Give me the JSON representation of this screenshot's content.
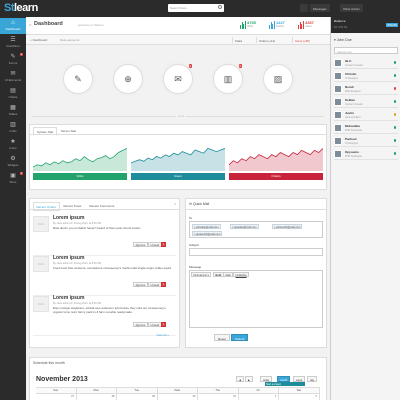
{
  "brand": {
    "logo_prefix": "St",
    "logo_suffix": "learn"
  },
  "topbar": {
    "search_placeholder": "Search here...",
    "messages_label": "Messages",
    "user_label": "Other Admin"
  },
  "nav": [
    {
      "label": "Dashboard",
      "glyph": "⌂",
      "badge": ""
    },
    {
      "label": "UserMenu",
      "glyph": "☰",
      "badge": ""
    },
    {
      "label": "Forms",
      "glyph": "✎",
      "badge": "2"
    },
    {
      "label": "UI Elements",
      "glyph": "✉",
      "badge": ""
    },
    {
      "label": "Charts",
      "glyph": "▤",
      "badge": ""
    },
    {
      "label": "Tables",
      "glyph": "▦",
      "badge": ""
    },
    {
      "label": "Grids",
      "glyph": "▥",
      "badge": ""
    },
    {
      "label": "Icons",
      "glyph": "★",
      "badge": ""
    },
    {
      "label": "Widgets",
      "glyph": "⚙",
      "badge": ""
    },
    {
      "label": "More",
      "glyph": "▣",
      "badge": "3"
    }
  ],
  "header": {
    "title": "Dashboard",
    "subtitle": "welcome to Stlearn",
    "stats": [
      {
        "value": "4765",
        "label": "Visits",
        "color": "#22a36b"
      },
      {
        "value": "1427",
        "label": "Orders",
        "color": "#3aa6d8"
      },
      {
        "value": "4367",
        "label": "Users",
        "color": "#e04040"
      }
    ]
  },
  "breadcrumb": {
    "home": "Dashboard",
    "current": "Data elements",
    "tasks": "Tasks",
    "orders": "Orders (+12)",
    "users": "Users (+58)"
  },
  "shortcuts": [
    {
      "name": "edit",
      "glyph": "✎",
      "badge": ""
    },
    {
      "name": "upload",
      "glyph": "⊕",
      "badge": ""
    },
    {
      "name": "mail",
      "glyph": "✉",
      "badge": "4"
    },
    {
      "name": "barcode",
      "glyph": "▥",
      "badge": "2"
    },
    {
      "name": "image",
      "glyph": "▨",
      "badge": ""
    }
  ],
  "shortcut_divider": "more",
  "stats_panel": {
    "tabs": [
      "System Stat",
      "Server Stat"
    ],
    "charts": [
      {
        "label": "Visits",
        "color": "#22a36b",
        "points": [
          4,
          6,
          5,
          8,
          6,
          9,
          7,
          10,
          8,
          9,
          12,
          10,
          14,
          11,
          9,
          12,
          13,
          15,
          12,
          14,
          18,
          20,
          22
        ]
      },
      {
        "label": "Users",
        "color": "#1e8c9a",
        "points": [
          5,
          6,
          7,
          6,
          8,
          7,
          9,
          8,
          10,
          9,
          11,
          10,
          12,
          11,
          10,
          13,
          12,
          11,
          14,
          13,
          12,
          13,
          14
        ]
      },
      {
        "label": "Orders",
        "color": "#c9233c",
        "points": [
          3,
          5,
          4,
          6,
          5,
          7,
          6,
          8,
          7,
          6,
          8,
          7,
          9,
          8,
          7,
          9,
          8,
          10,
          9,
          8,
          10,
          9,
          11
        ]
      }
    ]
  },
  "recent": {
    "tabs": [
      "Recent Orders",
      "Recent Posts",
      "Recent Comments"
    ],
    "posts": [
      {
        "title": "Lorem ipsum",
        "meta": "By Jane admin on 19 aug 2013, at 8:46 PM",
        "body": "Raw denim you probably haven't heard of them jean shorts Austin.",
        "thumb": "64x64"
      },
      {
        "title": "Lorem ipsum",
        "meta": "By Jane admin on 19 aug 2013, at 8:46 PM",
        "body": "Food truck fixie locavore, accusamus mcsweeney's marfa nulla single-origin coffee squid.",
        "thumb": "64x64"
      },
      {
        "title": "Lorem ipsum",
        "meta": "By Jane admin on 19 aug 2013, at 8:46 PM",
        "body": "Etsy mixtape wayfarers, ethical wes anderson tofu before they sold out mcsweeney's organic lomo retro fanny pack lo-fi farm-to-table readymade.",
        "thumb": "64x64"
      }
    ],
    "approve": "Approve",
    "unread": "Unread",
    "delete": "×",
    "view_all": "View all »"
  },
  "quick_mail": {
    "title": "Quick Mail",
    "to_label": "To",
    "recipients": [
      "johndoe@mail.com",
      "janedoe@mail.com",
      "johnsmith@mail.com",
      "janesmith@mail.com"
    ],
    "subject_label": "Subject",
    "message_label": "Message",
    "toolbar": [
      "Normal text ▾",
      "Bold",
      "Italic",
      "Underline"
    ],
    "reset": "Reset",
    "submit": "Submit"
  },
  "calendar": {
    "heading": "Schedule this month",
    "month": "November 2013",
    "prev": "◀",
    "next": "▶",
    "today": "today",
    "views": [
      "month",
      "week",
      "day"
    ],
    "days": [
      "Sun",
      "Mon",
      "Tue",
      "Wed",
      "Thu",
      "Fri",
      "Sat"
    ],
    "first_row": [
      "27",
      "28",
      "29",
      "30",
      "31",
      "1",
      "2"
    ],
    "event": "Start a project"
  },
  "balance": {
    "label": "Balance",
    "amount": "$2,345.00",
    "update": "UPDATE"
  },
  "users": {
    "heading": "John Doe",
    "search_placeholder": "Search user",
    "list": [
      {
        "name": "Ila C.",
        "role": "Content Creator",
        "status": "#22a36b"
      },
      {
        "name": "Christin",
        "role": "UI Designer",
        "status": "#22a36b"
      },
      {
        "name": "Norah",
        "role": "Web Designer",
        "status": "#e04040"
      },
      {
        "name": "Kellian",
        "role": "Content Creator",
        "status": "#22a36b"
      },
      {
        "name": "Justin",
        "role": "Java architect",
        "status": "#e0a020"
      },
      {
        "name": "Mohamiba",
        "role": "PHP Developer",
        "status": "#22a36b"
      },
      {
        "name": "Pachoel",
        "role": "UI Designer",
        "status": "#22a36b"
      },
      {
        "name": "Opyoumo",
        "role": "PHP Developer",
        "status": "#22a36b"
      }
    ]
  }
}
